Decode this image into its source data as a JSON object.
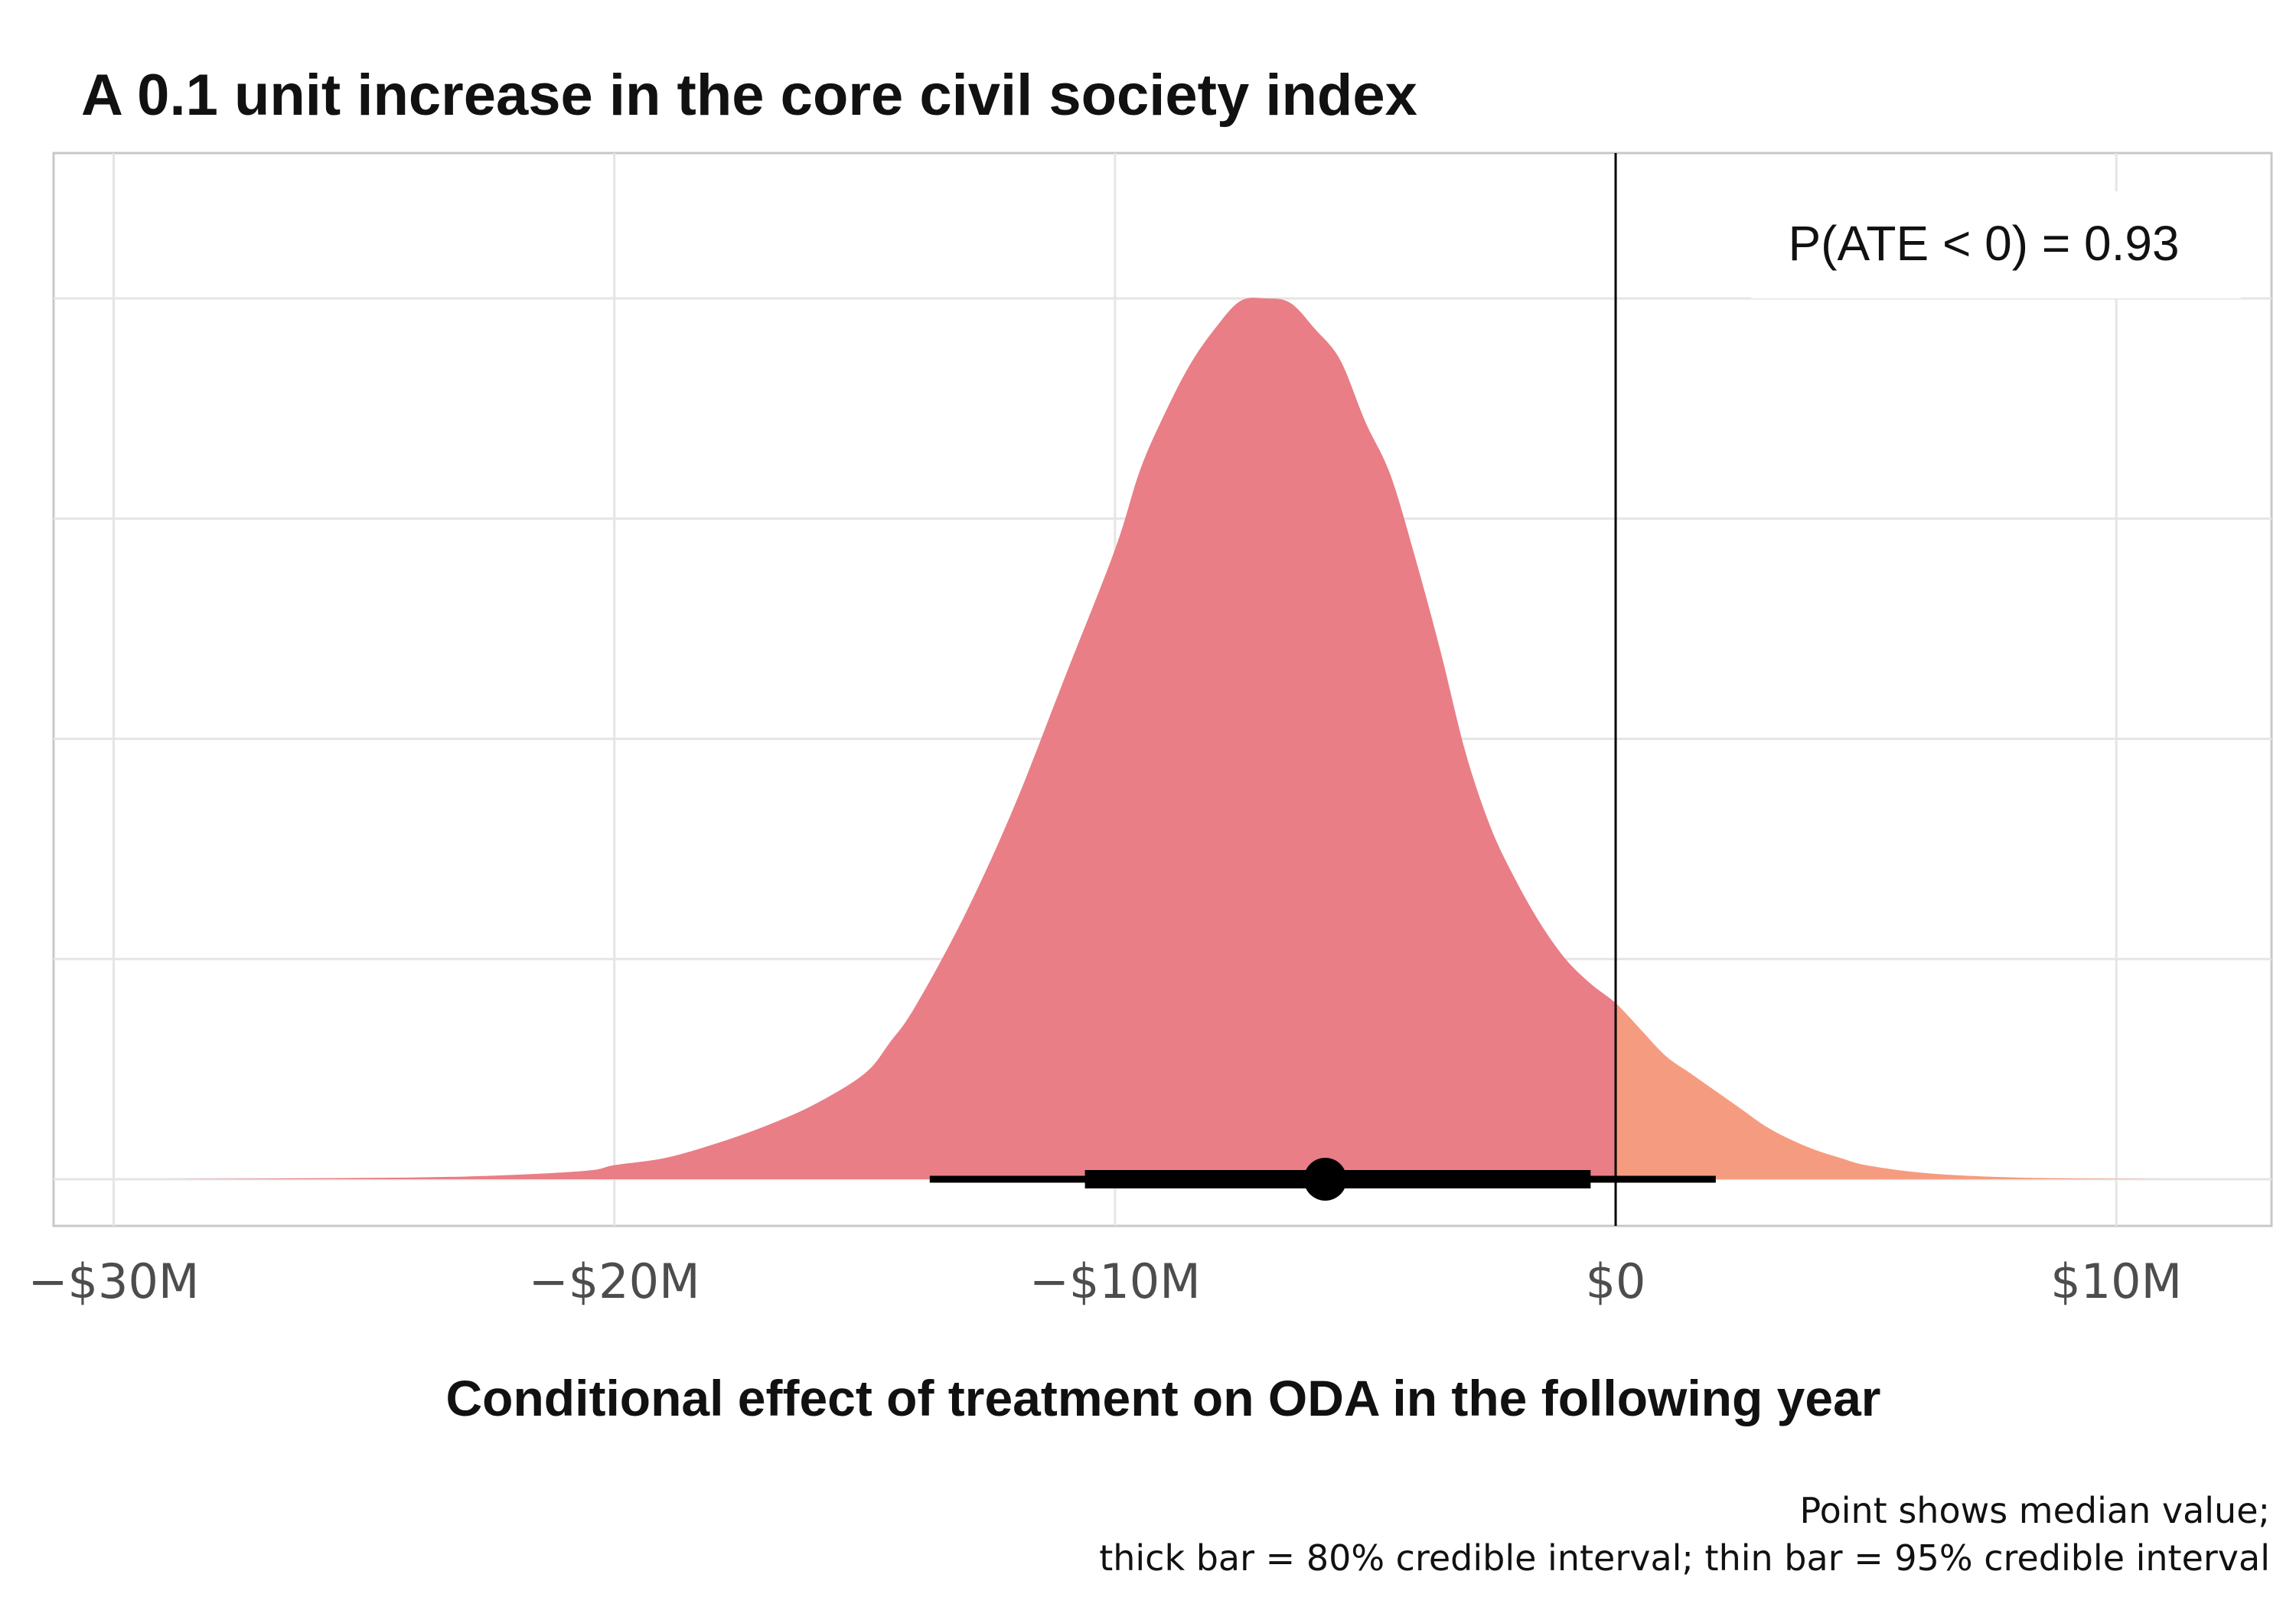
{
  "chart_data": {
    "type": "density",
    "title": "A 0.1 unit increase in the core civil society index",
    "xlabel": "Conditional effect of treatment on ODA in the following year",
    "ylabel": "",
    "x_unit": "USD millions",
    "xlim": [
      -31.2,
      13.1
    ],
    "x_ticks": [
      -30,
      -20,
      -10,
      0,
      10
    ],
    "x_tick_labels": [
      "−$30M",
      "−$20M",
      "−$10M",
      "$0",
      "$10M"
    ],
    "y_grid_levels": [
      0.25,
      0.5,
      0.75,
      1.0
    ],
    "grid": true,
    "reference_line_x": 0,
    "colors": {
      "below_zero": "#e97e86",
      "above_zero": "#f59c80",
      "grid": "#e5e5e5",
      "line": "#000000"
    },
    "density": {
      "x": [
        -29,
        -24,
        -22,
        -20.5,
        -20,
        -19,
        -18,
        -17,
        -16,
        -15,
        -14.5,
        -14,
        -13,
        -12,
        -11,
        -10,
        -9.5,
        -9,
        -8.5,
        -8,
        -7.5,
        -7,
        -6.5,
        -6,
        -5.5,
        -5,
        -4.5,
        -4,
        -3.5,
        -3,
        -2.5,
        -2,
        -1.5,
        -1,
        -0.5,
        0,
        0.5,
        1,
        1.5,
        2,
        2.5,
        3,
        3.5,
        4,
        4.5,
        5,
        6,
        7,
        8,
        9,
        11
      ],
      "y": [
        0,
        0.002,
        0.005,
        0.01,
        0.016,
        0.024,
        0.04,
        0.06,
        0.085,
        0.12,
        0.155,
        0.195,
        0.3,
        0.425,
        0.57,
        0.715,
        0.805,
        0.87,
        0.925,
        0.966,
        0.997,
        1.0,
        0.995,
        0.965,
        0.93,
        0.86,
        0.8,
        0.705,
        0.6,
        0.485,
        0.4,
        0.34,
        0.29,
        0.25,
        0.222,
        0.2,
        0.17,
        0.14,
        0.12,
        0.1,
        0.08,
        0.06,
        0.045,
        0.033,
        0.024,
        0.016,
        0.008,
        0.004,
        0.002,
        0.001,
        0
      ]
    },
    "median": -5.8,
    "interval_80": [
      -10.6,
      -0.5
    ],
    "interval_95": [
      -13.7,
      2.0
    ],
    "annotation": "P(ATE < 0) = 0.93",
    "caption_lines": [
      "Point shows median value;",
      "thick bar = 80% credible interval; thin bar = 95% credible interval"
    ]
  }
}
